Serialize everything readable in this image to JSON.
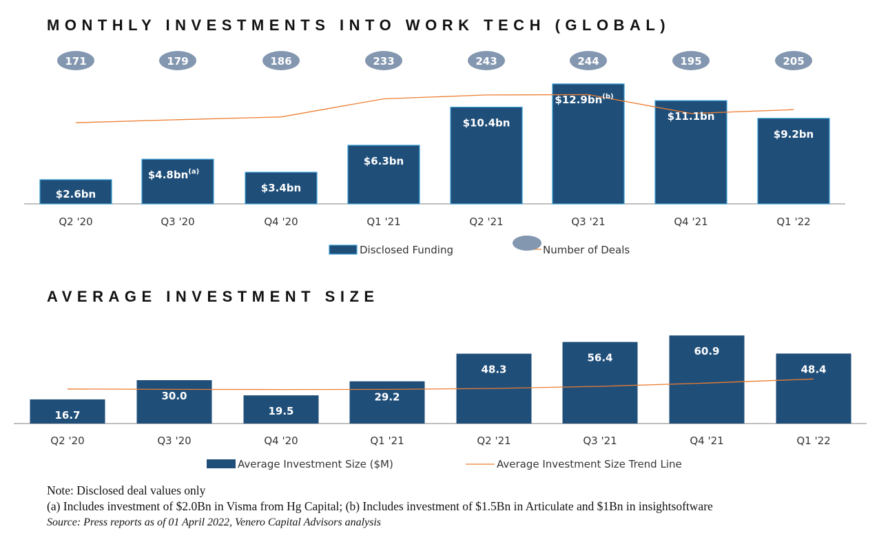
{
  "charts_text": {
    "title1": "MONTHLY INVESTMENTS INTO WORK TECH (GLOBAL)",
    "title2": "AVERAGE INVESTMENT SIZE"
  },
  "chart_data": [
    {
      "type": "bar",
      "title": "MONTHLY INVESTMENTS INTO WORK TECH (GLOBAL)",
      "categories": [
        "Q2 '20",
        "Q3 '20",
        "Q4 '20",
        "Q1 '21",
        "Q2 '21",
        "Q3 '21",
        "Q4 '21",
        "Q1 '22"
      ],
      "series": [
        {
          "name": "Disclosed Funding",
          "type": "bar",
          "values": [
            2.6,
            4.8,
            3.4,
            6.3,
            10.4,
            12.9,
            11.1,
            9.2
          ],
          "labels": [
            "$2.6bn",
            "$4.8bn",
            "$3.4bn",
            "$6.3bn",
            "$10.4bn",
            "$12.9bn",
            "$11.1bn",
            "$9.2bn"
          ],
          "label_marks": [
            "",
            "(a)",
            "",
            "",
            "",
            "(b)",
            "",
            ""
          ],
          "color": "#1f4e79"
        },
        {
          "name": "Number of Deals",
          "type": "line",
          "values": [
            171,
            179,
            186,
            233,
            243,
            244,
            195,
            205
          ],
          "color": "#ed7d31",
          "marker_color": "#8497b0"
        }
      ],
      "legend": "bottom-center"
    },
    {
      "type": "bar",
      "title": "AVERAGE INVESTMENT SIZE",
      "categories": [
        "Q2 '20",
        "Q3 '20",
        "Q4 '20",
        "Q1 '21",
        "Q2 '21",
        "Q3 '21",
        "Q4 '21",
        "Q1 '22"
      ],
      "series": [
        {
          "name": "Average Investment Size ($M)",
          "type": "bar",
          "values": [
            16.7,
            30.0,
            19.5,
            29.2,
            48.3,
            56.4,
            60.9,
            48.4
          ],
          "labels": [
            "16.7",
            "30.0",
            "19.5",
            "29.2",
            "48.3",
            "56.4",
            "60.9",
            "48.4"
          ],
          "color": "#1f4e79"
        },
        {
          "name": "Average Investment Size Trend Line",
          "type": "line",
          "values": [
            23.9,
            23.6,
            23.5,
            23.6,
            24.3,
            25.7,
            28.0,
            30.8
          ],
          "color": "#ed7d31"
        }
      ],
      "legend": "bottom-center"
    }
  ],
  "notes": {
    "line1": "Note: Disclosed deal values only",
    "line2": "(a) Includes investment of $2.0Bn in Visma from Hg Capital; (b) Includes investment of $1.5Bn in Articulate and $1Bn in insightsoftware",
    "source": "Source: Press reports as of 01 April 2022, Venero Capital Advisors analysis"
  }
}
